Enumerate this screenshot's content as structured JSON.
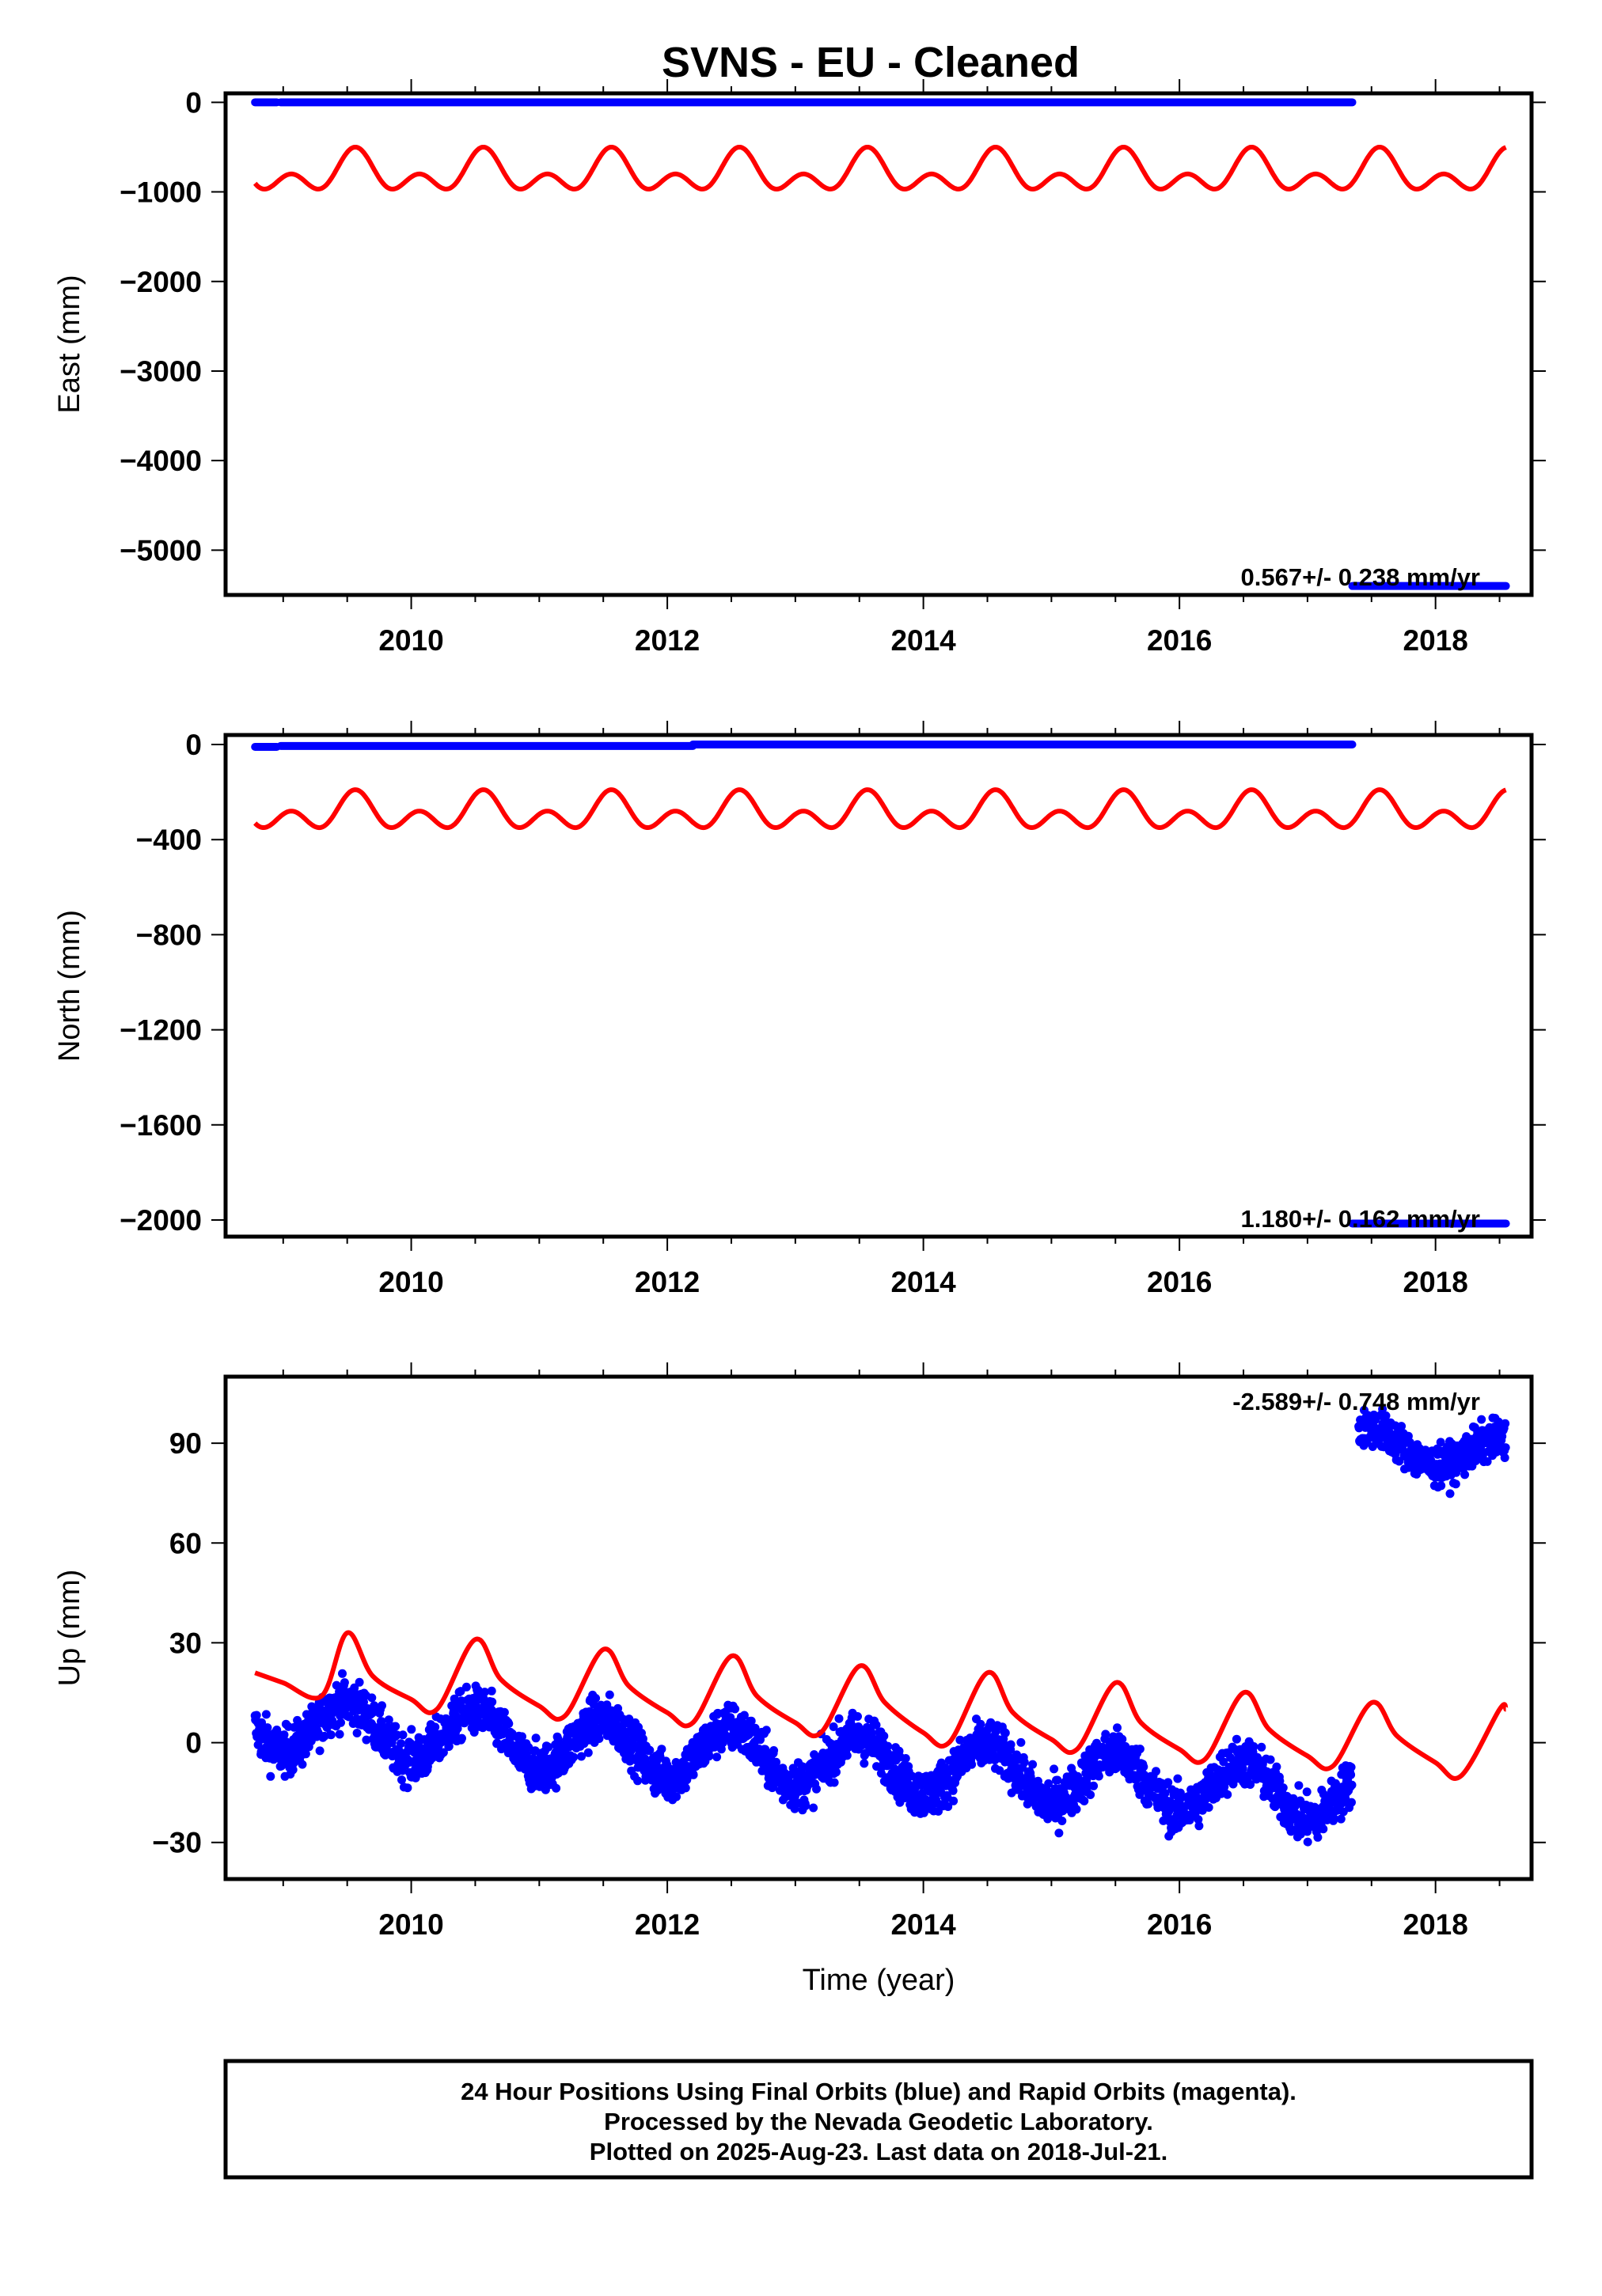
{
  "title": "SVNS  - EU - Cleaned",
  "footer": {
    "line1": "24 Hour Positions Using Final Orbits (blue) and Rapid Orbits (magenta).",
    "line2": "Processed by the Nevada Geodetic Laboratory.",
    "line3": "Plotted on 2025-Aug-23. Last data on 2018-Jul-21."
  },
  "colors": {
    "data": "#0000ff",
    "model": "#ff0000",
    "frame": "#000000"
  },
  "chart_data": [
    {
      "type": "scatter",
      "ylabel": "East (mm)",
      "xlabel": "",
      "xlim": [
        2008.55,
        2018.75
      ],
      "ylim": [
        -5500,
        100
      ],
      "xticks": [
        2010,
        2012,
        2014,
        2016,
        2018
      ],
      "yticks": [
        0,
        -1000,
        -2000,
        -3000,
        -4000,
        -5000
      ],
      "rate_text": "0.567+/- 0.238 mm/yr",
      "data_segments": [
        {
          "x0": 2008.78,
          "x1": 2008.95,
          "y": 0
        },
        {
          "x0": 2008.98,
          "x1": 2017.35,
          "y": 0
        },
        {
          "x0": 2017.35,
          "x1": 2018.55,
          "y": -5400
        }
      ],
      "model": {
        "base": -800,
        "annual": 150,
        "semiannual": 150,
        "x0": 2008.78,
        "x1": 2018.55
      }
    },
    {
      "type": "scatter",
      "ylabel": "North (mm)",
      "xlabel": "",
      "xlim": [
        2008.55,
        2018.75
      ],
      "ylim": [
        -2070,
        40
      ],
      "xticks": [
        2010,
        2012,
        2014,
        2016,
        2018
      ],
      "yticks": [
        0,
        -400,
        -800,
        -1200,
        -1600,
        -2000
      ],
      "rate_text": "1.180+/- 0.162 mm/yr",
      "data_segments": [
        {
          "x0": 2008.78,
          "x1": 2008.95,
          "y": -10
        },
        {
          "x0": 2008.98,
          "x1": 2012.2,
          "y": -6
        },
        {
          "x0": 2012.2,
          "x1": 2017.35,
          "y": 0
        },
        {
          "x0": 2017.35,
          "x1": 2018.55,
          "y": -2015
        }
      ],
      "model": {
        "base": -290,
        "annual": 45,
        "semiannual": 55,
        "x0": 2008.78,
        "x1": 2018.55
      }
    },
    {
      "type": "scatter",
      "ylabel": "Up (mm)",
      "xlabel": "Time (year)",
      "xlim": [
        2008.55,
        2018.75
      ],
      "ylim": [
        -41,
        110
      ],
      "xticks": [
        2010,
        2012,
        2014,
        2016,
        2018
      ],
      "yticks": [
        90,
        60,
        30,
        0,
        -30
      ],
      "rate_text": "-2.589+/- 0.748 mm/yr",
      "data_segments": [
        {
          "x0": 2008.78,
          "x1": 2017.35,
          "trend_start": 6,
          "trend_end": -16,
          "amplitude": 8,
          "noise": 6
        },
        {
          "x0": 2017.4,
          "x1": 2018.55,
          "trend_start": 90,
          "trend_end": 86,
          "amplitude": 5,
          "noise": 5
        }
      ],
      "model_points": [
        [
          2008.78,
          21
        ],
        [
          2009.0,
          18
        ],
        [
          2009.3,
          14
        ],
        [
          2009.5,
          33
        ],
        [
          2009.7,
          20
        ],
        [
          2010.0,
          13
        ],
        [
          2010.2,
          10
        ],
        [
          2010.5,
          31
        ],
        [
          2010.7,
          19
        ],
        [
          2011.0,
          11
        ],
        [
          2011.2,
          8
        ],
        [
          2011.5,
          28
        ],
        [
          2011.7,
          17
        ],
        [
          2012.0,
          9
        ],
        [
          2012.2,
          6
        ],
        [
          2012.5,
          26
        ],
        [
          2012.7,
          14
        ],
        [
          2013.0,
          6
        ],
        [
          2013.2,
          3
        ],
        [
          2013.5,
          23
        ],
        [
          2013.7,
          12
        ],
        [
          2014.0,
          3
        ],
        [
          2014.2,
          0
        ],
        [
          2014.5,
          21
        ],
        [
          2014.7,
          9
        ],
        [
          2015.0,
          1
        ],
        [
          2015.2,
          -2
        ],
        [
          2015.5,
          18
        ],
        [
          2015.7,
          6
        ],
        [
          2016.0,
          -2
        ],
        [
          2016.2,
          -5
        ],
        [
          2016.5,
          15
        ],
        [
          2016.7,
          4
        ],
        [
          2017.0,
          -4
        ],
        [
          2017.2,
          -7
        ],
        [
          2017.5,
          12
        ],
        [
          2017.7,
          2
        ],
        [
          2018.0,
          -6
        ],
        [
          2018.2,
          -10
        ],
        [
          2018.5,
          10
        ],
        [
          2018.55,
          10
        ]
      ]
    }
  ]
}
